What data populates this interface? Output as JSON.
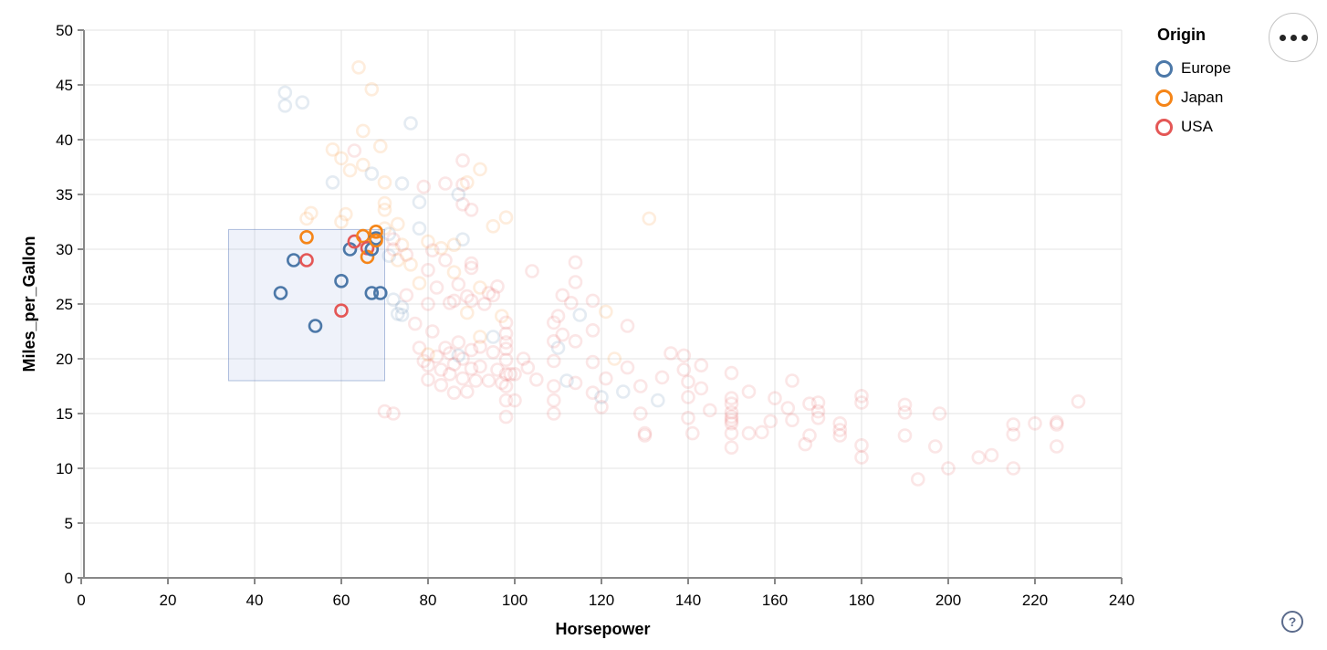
{
  "controls": {
    "actions_button": {
      "icon": "ellipsis-menu-icon",
      "tooltip_label": ""
    },
    "help_button": {
      "label": "?"
    }
  },
  "chart_data": {
    "type": "scatter",
    "xlabel": "Horsepower",
    "ylabel": "Miles_per_Gallon",
    "xlim": [
      0,
      240
    ],
    "ylim": [
      0,
      50
    ],
    "x_ticks": [
      0,
      20,
      40,
      60,
      80,
      100,
      120,
      140,
      160,
      180,
      200,
      220,
      240
    ],
    "y_ticks": [
      0,
      5,
      10,
      15,
      20,
      25,
      30,
      35,
      40,
      45,
      50
    ],
    "grid": true,
    "legend": {
      "title": "Origin",
      "position": "top-right",
      "items": [
        {
          "label": "Europe",
          "color": "#4c78a8"
        },
        {
          "label": "Japan",
          "color": "#f58518"
        },
        {
          "label": "USA",
          "color": "#e45756"
        }
      ]
    },
    "origin_colors": {
      "Europe": "#4c78a8",
      "Japan": "#f58518",
      "USA": "#e45756"
    },
    "point_style": {
      "shape": "open-circle",
      "radius_px": 6.5,
      "stroke_width_px": 2.6,
      "faded_opacity": 0.15,
      "selected_opacity": 1
    },
    "brush_selection": {
      "hp_range": [
        34,
        70
      ],
      "mpg_range": [
        18,
        31.8
      ],
      "fill": "rgba(120,150,210,0.12)",
      "stroke": "rgba(100,130,190,0.5)"
    },
    "points": [
      [
        46,
        26,
        "Europe",
        1
      ],
      [
        49,
        29,
        "Europe",
        1
      ],
      [
        52,
        29,
        "USA",
        1
      ],
      [
        52,
        31.1,
        "Japan",
        1
      ],
      [
        54,
        23,
        "Europe",
        1
      ],
      [
        60,
        24.4,
        "USA",
        1
      ],
      [
        60,
        27.1,
        "Europe",
        1
      ],
      [
        62,
        30,
        "Europe",
        1
      ],
      [
        63,
        30.7,
        "USA",
        1
      ],
      [
        65,
        31.2,
        "Japan",
        1
      ],
      [
        66,
        30.1,
        "USA",
        1
      ],
      [
        66,
        29.3,
        "Japan",
        1
      ],
      [
        67,
        30,
        "Europe",
        1
      ],
      [
        68,
        31,
        "Europe",
        1
      ],
      [
        68,
        31.6,
        "Japan",
        1
      ],
      [
        68,
        30.8,
        "Japan",
        1
      ],
      [
        67,
        26,
        "Europe",
        1
      ],
      [
        69,
        26,
        "Europe",
        1
      ],
      [
        64,
        46.6,
        "Japan",
        0
      ],
      [
        67,
        44.6,
        "Japan",
        0
      ],
      [
        47,
        44.3,
        "Europe",
        0
      ],
      [
        51,
        43.4,
        "Europe",
        0
      ],
      [
        47,
        43.1,
        "Europe",
        0
      ],
      [
        76,
        41.5,
        "Europe",
        0
      ],
      [
        65,
        40.8,
        "Japan",
        0
      ],
      [
        69,
        39.4,
        "Japan",
        0
      ],
      [
        58,
        39.1,
        "Japan",
        0
      ],
      [
        63,
        39,
        "USA",
        0
      ],
      [
        60,
        38.3,
        "Japan",
        0
      ],
      [
        88,
        38.1,
        "USA",
        0
      ],
      [
        65,
        37.7,
        "Japan",
        0
      ],
      [
        62,
        37.2,
        "Japan",
        0
      ],
      [
        67,
        36.9,
        "Europe",
        0
      ],
      [
        74,
        36,
        "Europe",
        0
      ],
      [
        92,
        37.3,
        "Japan",
        0
      ],
      [
        58,
        36.1,
        "Europe",
        0
      ],
      [
        70,
        36.1,
        "Japan",
        0
      ],
      [
        79,
        35.7,
        "USA",
        0
      ],
      [
        84,
        36,
        "USA",
        0
      ],
      [
        88,
        35.9,
        "USA",
        0
      ],
      [
        89,
        36.1,
        "Japan",
        0
      ],
      [
        87,
        35,
        "Europe",
        0
      ],
      [
        78,
        34.3,
        "Europe",
        0
      ],
      [
        88,
        34.1,
        "USA",
        0
      ],
      [
        90,
        33.6,
        "USA",
        0
      ],
      [
        70,
        34.2,
        "Japan",
        0
      ],
      [
        70,
        33.6,
        "Japan",
        0
      ],
      [
        98,
        32.9,
        "Japan",
        0
      ],
      [
        95,
        32.1,
        "Japan",
        0
      ],
      [
        131,
        32.8,
        "Japan",
        0
      ],
      [
        52,
        32.8,
        "Japan",
        0
      ],
      [
        53,
        33.3,
        "Japan",
        0
      ],
      [
        60,
        32.5,
        "Japan",
        0
      ],
      [
        61,
        33.2,
        "Japan",
        0
      ],
      [
        70,
        31.9,
        "Japan",
        0
      ],
      [
        71,
        31.4,
        "Europe",
        0
      ],
      [
        73,
        32.3,
        "Japan",
        0
      ],
      [
        72,
        30.9,
        "USA",
        0
      ],
      [
        74,
        30.4,
        "Japan",
        0
      ],
      [
        71,
        29.4,
        "Europe",
        0
      ],
      [
        72,
        30,
        "USA",
        0
      ],
      [
        75,
        29.5,
        "USA",
        0
      ],
      [
        78,
        31.9,
        "Europe",
        0
      ],
      [
        80,
        30.7,
        "Japan",
        0
      ],
      [
        81,
        29.9,
        "USA",
        0
      ],
      [
        83,
        30.1,
        "Japan",
        0
      ],
      [
        84,
        29,
        "USA",
        0
      ],
      [
        86,
        30.4,
        "Japan",
        0
      ],
      [
        88,
        30.9,
        "Europe",
        0
      ],
      [
        90,
        28.7,
        "USA",
        0
      ],
      [
        90,
        28.3,
        "USA",
        0
      ],
      [
        86,
        27.9,
        "Japan",
        0
      ],
      [
        80,
        28.1,
        "USA",
        0
      ],
      [
        78,
        26.9,
        "Japan",
        0
      ],
      [
        82,
        26.5,
        "USA",
        0
      ],
      [
        87,
        26.8,
        "USA",
        0
      ],
      [
        92,
        26.5,
        "Japan",
        0
      ],
      [
        94,
        26,
        "USA",
        0
      ],
      [
        96,
        26.6,
        "USA",
        0
      ],
      [
        104,
        28,
        "USA",
        0
      ],
      [
        114,
        28.8,
        "USA",
        0
      ],
      [
        114,
        27,
        "USA",
        0
      ],
      [
        76,
        28.6,
        "Japan",
        0
      ],
      [
        73,
        29,
        "Japan",
        0
      ],
      [
        75,
        25.8,
        "USA",
        0
      ],
      [
        80,
        25,
        "USA",
        0
      ],
      [
        85,
        25.1,
        "USA",
        0
      ],
      [
        86,
        25.3,
        "USA",
        0
      ],
      [
        89,
        25.7,
        "USA",
        0
      ],
      [
        90,
        25.3,
        "USA",
        0
      ],
      [
        93,
        25,
        "USA",
        0
      ],
      [
        95,
        25.8,
        "USA",
        0
      ],
      [
        111,
        25.8,
        "USA",
        0
      ],
      [
        113,
        25.1,
        "USA",
        0
      ],
      [
        118,
        25.3,
        "USA",
        0
      ],
      [
        115,
        24,
        "Europe",
        0
      ],
      [
        73,
        24.1,
        "Europe",
        0
      ],
      [
        74,
        24.7,
        "Europe",
        0
      ],
      [
        72,
        25.4,
        "Europe",
        0
      ],
      [
        74,
        24,
        "Europe",
        0
      ],
      [
        77,
        23.2,
        "USA",
        0
      ],
      [
        110,
        23.9,
        "USA",
        0
      ],
      [
        89,
        24.2,
        "Japan",
        0
      ],
      [
        97,
        23.9,
        "Japan",
        0
      ],
      [
        78,
        21,
        "USA",
        0
      ],
      [
        79,
        19.8,
        "USA",
        0
      ],
      [
        80,
        19.4,
        "USA",
        0
      ],
      [
        80,
        18.1,
        "USA",
        0
      ],
      [
        81,
        22.5,
        "USA",
        0
      ],
      [
        82,
        20.2,
        "USA",
        0
      ],
      [
        83,
        17.6,
        "USA",
        0
      ],
      [
        83,
        19,
        "USA",
        0
      ],
      [
        84,
        21,
        "USA",
        0
      ],
      [
        85,
        20.5,
        "USA",
        0
      ],
      [
        85,
        18.6,
        "USA",
        0
      ],
      [
        86,
        16.9,
        "USA",
        0
      ],
      [
        86,
        19.5,
        "USA",
        0
      ],
      [
        87,
        21.5,
        "USA",
        0
      ],
      [
        88,
        18.2,
        "USA",
        0
      ],
      [
        88,
        20,
        "USA",
        0
      ],
      [
        89,
        17,
        "USA",
        0
      ],
      [
        90,
        19.1,
        "USA",
        0
      ],
      [
        90,
        20.8,
        "USA",
        0
      ],
      [
        91,
        18,
        "USA",
        0
      ],
      [
        92,
        21.1,
        "USA",
        0
      ],
      [
        92,
        19.3,
        "USA",
        0
      ],
      [
        94,
        18,
        "USA",
        0
      ],
      [
        95,
        20.6,
        "USA",
        0
      ],
      [
        96,
        19,
        "USA",
        0
      ],
      [
        97,
        17.8,
        "USA",
        0
      ],
      [
        98,
        21.5,
        "USA",
        0
      ],
      [
        100,
        18.6,
        "USA",
        0
      ],
      [
        100,
        16.2,
        "USA",
        0
      ],
      [
        102,
        20,
        "USA",
        0
      ],
      [
        103,
        19.2,
        "USA",
        0
      ],
      [
        105,
        18.1,
        "USA",
        0
      ],
      [
        87,
        20.3,
        "Europe",
        0
      ],
      [
        95,
        22,
        "Europe",
        0
      ],
      [
        110,
        21,
        "Europe",
        0
      ],
      [
        92,
        22,
        "Japan",
        0
      ],
      [
        80,
        20.4,
        "Japan",
        0
      ],
      [
        98,
        23.3,
        "USA",
        0
      ],
      [
        98,
        22.3,
        "USA",
        0
      ],
      [
        98,
        20.9,
        "USA",
        0
      ],
      [
        98,
        19.9,
        "USA",
        0
      ],
      [
        98,
        18.6,
        "USA",
        0
      ],
      [
        99,
        18.6,
        "USA",
        0
      ],
      [
        98,
        17.5,
        "USA",
        0
      ],
      [
        98,
        16.2,
        "USA",
        0
      ],
      [
        98,
        14.7,
        "USA",
        0
      ],
      [
        109,
        23.3,
        "USA",
        0
      ],
      [
        109,
        21.6,
        "USA",
        0
      ],
      [
        109,
        19.8,
        "USA",
        0
      ],
      [
        109,
        17.5,
        "USA",
        0
      ],
      [
        109,
        16.2,
        "USA",
        0
      ],
      [
        109,
        15,
        "USA",
        0
      ],
      [
        112,
        18,
        "Europe",
        0
      ],
      [
        111,
        22.2,
        "USA",
        0
      ],
      [
        114,
        21.6,
        "USA",
        0
      ],
      [
        118,
        22.6,
        "USA",
        0
      ],
      [
        118,
        19.7,
        "USA",
        0
      ],
      [
        114,
        17.8,
        "USA",
        0
      ],
      [
        118,
        16.9,
        "USA",
        0
      ],
      [
        70,
        15.2,
        "USA",
        0
      ],
      [
        72,
        15,
        "USA",
        0
      ],
      [
        121,
        24.3,
        "Japan",
        0
      ],
      [
        126,
        23,
        "USA",
        0
      ],
      [
        123,
        20,
        "Japan",
        0
      ],
      [
        126,
        19.2,
        "USA",
        0
      ],
      [
        121,
        18.2,
        "USA",
        0
      ],
      [
        125,
        17,
        "Europe",
        0
      ],
      [
        120,
        16.5,
        "Europe",
        0
      ],
      [
        120,
        15.6,
        "USA",
        0
      ],
      [
        129,
        17.5,
        "USA",
        0
      ],
      [
        129,
        15,
        "USA",
        0
      ],
      [
        130,
        13,
        "USA",
        0
      ],
      [
        130,
        13.2,
        "USA",
        0
      ],
      [
        133,
        16.2,
        "Europe",
        0
      ],
      [
        134,
        18.3,
        "USA",
        0
      ],
      [
        136,
        20.5,
        "USA",
        0
      ],
      [
        139,
        20.3,
        "USA",
        0
      ],
      [
        139,
        19,
        "USA",
        0
      ],
      [
        140,
        17.9,
        "USA",
        0
      ],
      [
        140,
        16.5,
        "USA",
        0
      ],
      [
        140,
        14.6,
        "USA",
        0
      ],
      [
        141,
        13.2,
        "USA",
        0
      ],
      [
        143,
        19.4,
        "USA",
        0
      ],
      [
        143,
        17.3,
        "USA",
        0
      ],
      [
        145,
        15.3,
        "USA",
        0
      ],
      [
        150,
        18.7,
        "USA",
        0
      ],
      [
        150,
        16.4,
        "USA",
        0
      ],
      [
        150,
        15.9,
        "USA",
        0
      ],
      [
        150,
        15.1,
        "USA",
        0
      ],
      [
        150,
        14.7,
        "USA",
        0
      ],
      [
        150,
        14.4,
        "USA",
        0
      ],
      [
        150,
        14.1,
        "USA",
        0
      ],
      [
        150,
        13.2,
        "USA",
        0
      ],
      [
        150,
        11.9,
        "USA",
        0
      ],
      [
        154,
        17,
        "USA",
        0
      ],
      [
        154,
        13.2,
        "USA",
        0
      ],
      [
        157,
        13.3,
        "USA",
        0
      ],
      [
        159,
        14.3,
        "USA",
        0
      ],
      [
        160,
        16.4,
        "USA",
        0
      ],
      [
        163,
        15.5,
        "USA",
        0
      ],
      [
        164,
        18,
        "USA",
        0
      ],
      [
        164,
        14.4,
        "USA",
        0
      ],
      [
        168,
        15.9,
        "USA",
        0
      ],
      [
        168,
        13,
        "USA",
        0
      ],
      [
        170,
        16,
        "USA",
        0
      ],
      [
        170,
        15.2,
        "USA",
        0
      ],
      [
        170,
        14.6,
        "USA",
        0
      ],
      [
        167,
        12.2,
        "USA",
        0
      ],
      [
        175,
        14.1,
        "USA",
        0
      ],
      [
        175,
        13.5,
        "USA",
        0
      ],
      [
        175,
        13,
        "USA",
        0
      ],
      [
        180,
        16.6,
        "USA",
        0
      ],
      [
        180,
        16,
        "USA",
        0
      ],
      [
        180,
        12.1,
        "USA",
        0
      ],
      [
        180,
        11,
        "USA",
        0
      ],
      [
        190,
        15.8,
        "USA",
        0
      ],
      [
        190,
        15.1,
        "USA",
        0
      ],
      [
        190,
        13,
        "USA",
        0
      ],
      [
        193,
        9,
        "USA",
        0
      ],
      [
        198,
        15,
        "USA",
        0
      ],
      [
        197,
        12,
        "USA",
        0
      ],
      [
        200,
        10,
        "USA",
        0
      ],
      [
        207,
        11,
        "USA",
        0
      ],
      [
        210,
        11.2,
        "USA",
        0
      ],
      [
        215,
        14,
        "USA",
        0
      ],
      [
        215,
        13.1,
        "USA",
        0
      ],
      [
        215,
        10,
        "USA",
        0
      ],
      [
        220,
        14.1,
        "USA",
        0
      ],
      [
        225,
        14,
        "USA",
        0
      ],
      [
        225,
        14.2,
        "USA",
        0
      ],
      [
        225,
        12,
        "USA",
        0
      ],
      [
        230,
        16.1,
        "USA",
        0
      ]
    ]
  }
}
